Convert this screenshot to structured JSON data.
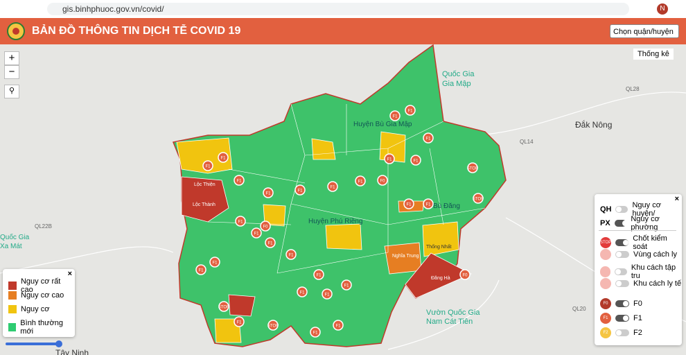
{
  "browser": {
    "url": "gis.binhphuoc.gov.vn/covid/",
    "avatar": "N"
  },
  "header": {
    "title": "BẢN ĐỒ THÔNG TIN DỊCH TỄ COVID 19",
    "select": "Chọn quận/huyện"
  },
  "controls": {
    "zoom_in": "+",
    "zoom_out": "−",
    "stats": "Thống kê"
  },
  "legend": {
    "items": [
      {
        "label": "Nguy cơ rất cao",
        "color": "#c0392b"
      },
      {
        "label": "Nguy cơ cao",
        "color": "#e67e22"
      },
      {
        "label": "Nguy cơ",
        "color": "#f1c40f"
      },
      {
        "label": "Bình thường mới",
        "color": "#2ecc71"
      }
    ]
  },
  "layers": {
    "groups": [
      {
        "code": "QH",
        "label": "Nguy cơ huyện/"
      },
      {
        "code": "PX",
        "label": "Nguy cơ phường"
      }
    ],
    "items": [
      {
        "icon": "STOP",
        "label": "Chốt kiểm soát"
      },
      {
        "label": "Vùng cách ly"
      },
      {
        "label": "Khu cách tập tru"
      },
      {
        "label": "Khu cách ly tế"
      },
      {
        "icon": "F0",
        "label": "F0"
      },
      {
        "icon": "F1",
        "label": "F1"
      },
      {
        "icon": "F2",
        "label": "F2"
      }
    ]
  },
  "map": {
    "places": [
      "Quốc Gia",
      "Gia Mập",
      "Đắk Nông",
      "Vườn Quốc Gia",
      "Nam Cát Tiên",
      "Quốc Gia",
      "Xa Mát",
      "Tây Ninh",
      "Huyện Bù Gia Mập",
      "Huyện Phú Riềng",
      "Bù Đăng",
      "QL14",
      "QL28",
      "QL20",
      "QL22B",
      "Đăng Hà",
      "Nghĩa Trung",
      "Lộc Thành",
      "Lộc Thiện",
      "Thống Nhất"
    ],
    "markers": [
      "F1",
      "F1",
      "F1",
      "F1",
      "F0",
      "F1",
      "F1",
      "F1",
      "F1",
      "F1",
      "STOP",
      "F1",
      "F1",
      "F0",
      "F1",
      "F1",
      "F1",
      "STOP",
      "F1",
      "F1",
      "F1",
      "F1",
      "STOP",
      "F1",
      "F1",
      "F0",
      "F1",
      "F1",
      "STOP",
      "F1",
      "F1",
      "F1",
      "F1",
      "F1"
    ]
  }
}
